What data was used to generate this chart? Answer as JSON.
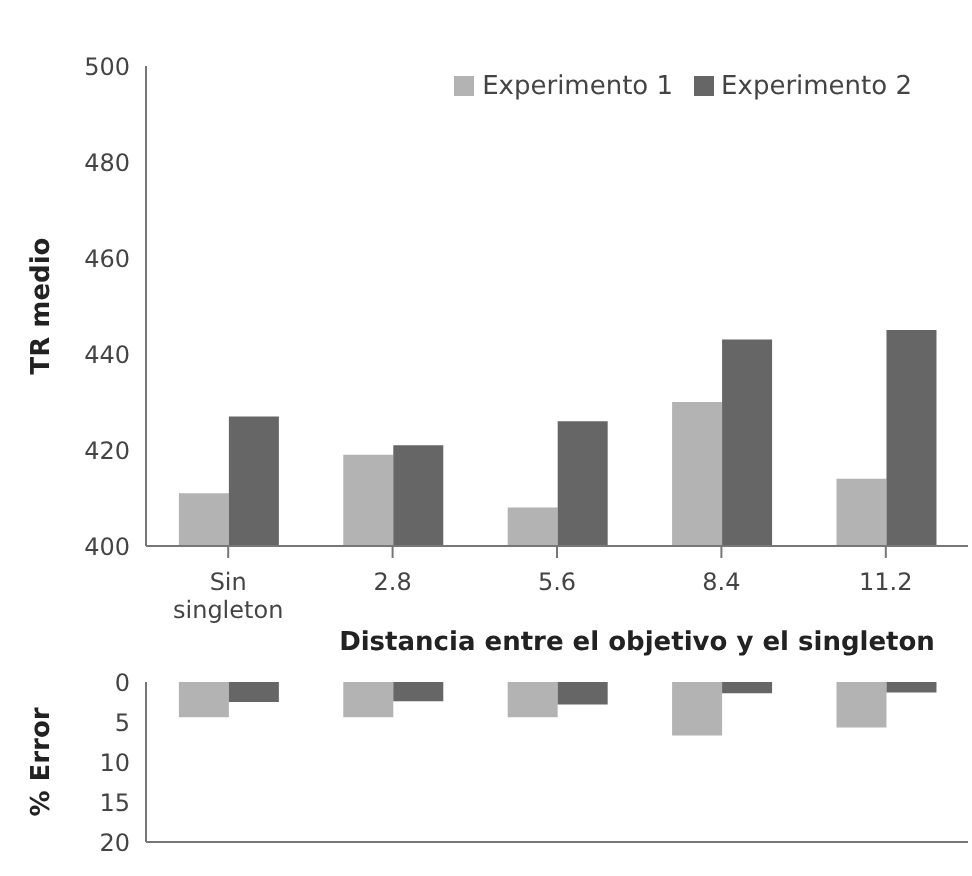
{
  "chart_data": [
    {
      "type": "bar",
      "categories": [
        "Sin singleton",
        "2.8",
        "5.6",
        "8.4",
        "11.2"
      ],
      "xlabel": "Distancia entre el objetivo y el singleton",
      "ylabel": "TR medio",
      "ylim": [
        400,
        500
      ],
      "yticks": [
        400,
        420,
        440,
        460,
        480,
        500
      ],
      "legend": "top right",
      "series": [
        {
          "name": "Experimento 1",
          "color": "#b3b3b3",
          "values": [
            411,
            419,
            408,
            430,
            414
          ]
        },
        {
          "name": "Experimento 2",
          "color": "#666666",
          "values": [
            427,
            421,
            426,
            443,
            445
          ]
        }
      ]
    },
    {
      "type": "bar",
      "categories": [
        null,
        null,
        null,
        null,
        null
      ],
      "ylabel": "% Error",
      "ylim": [
        20,
        0
      ],
      "yticks": [
        0,
        5,
        10,
        15,
        20
      ],
      "tick_labels": "y",
      "series": [
        {
          "color": "#b3b3b3",
          "values": [
            4.4,
            4.4,
            4.4,
            6.7,
            5.7
          ]
        },
        {
          "color": "#666666",
          "values": [
            2.5,
            2.4,
            2.8,
            1.4,
            1.3
          ]
        }
      ]
    }
  ]
}
